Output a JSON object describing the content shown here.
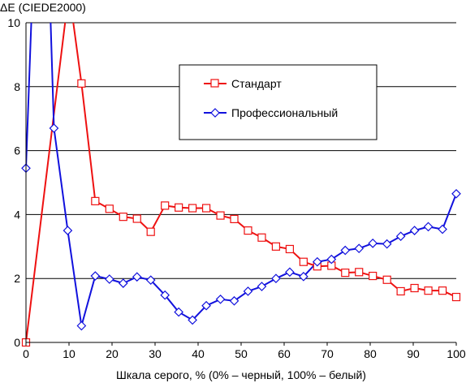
{
  "chart_data": {
    "type": "line",
    "title": "",
    "ylabel": "ΔE (CIEDE2000)",
    "xlabel": "Шкала серого, % (0% – черный, 100% – белый)",
    "xlim": [
      0,
      100
    ],
    "ylim": [
      0,
      10
    ],
    "x_ticks": [
      0,
      10,
      20,
      30,
      40,
      50,
      60,
      70,
      80,
      90,
      100
    ],
    "y_ticks": [
      0,
      2,
      4,
      6,
      8,
      10
    ],
    "grid": "horizontal",
    "legend_placement": "upper-center-right",
    "series": [
      {
        "name": "Стандарт",
        "color": "#ee1111",
        "marker": "square",
        "x": [
          0,
          10,
          12.9,
          16.1,
          19.4,
          22.6,
          25.8,
          29,
          32.3,
          35.5,
          38.7,
          41.9,
          45.2,
          48.4,
          51.6,
          54.8,
          58.1,
          61.3,
          64.5,
          67.7,
          71,
          74.2,
          77.4,
          80.6,
          83.9,
          87.1,
          90.3,
          93.5,
          96.8,
          100
        ],
        "y": [
          0,
          11,
          8.1,
          4.42,
          4.18,
          3.93,
          3.87,
          3.46,
          4.28,
          4.22,
          4.2,
          4.2,
          3.97,
          3.86,
          3.5,
          3.28,
          3.0,
          2.92,
          2.52,
          2.38,
          2.4,
          2.18,
          2.2,
          2.08,
          1.96,
          1.6,
          1.7,
          1.62,
          1.62,
          1.42
        ]
      },
      {
        "name": "Профессиональный",
        "color": "#1111dd",
        "marker": "diamond",
        "x": [
          0,
          1.5,
          5.5,
          6.5,
          9.7,
          12.9,
          16.1,
          19.4,
          22.6,
          25.8,
          29,
          32.3,
          35.5,
          38.7,
          41.9,
          45.2,
          48.4,
          51.6,
          54.8,
          58.1,
          61.3,
          64.5,
          67.7,
          71,
          74.2,
          77.4,
          80.6,
          83.9,
          87.1,
          90.3,
          93.5,
          96.8,
          100
        ],
        "y": [
          5.45,
          11,
          11,
          6.7,
          3.5,
          0.52,
          2.08,
          1.98,
          1.85,
          2.05,
          1.95,
          1.48,
          0.95,
          0.7,
          1.15,
          1.35,
          1.3,
          1.6,
          1.75,
          2.0,
          2.2,
          2.06,
          2.52,
          2.6,
          2.88,
          2.94,
          3.1,
          3.08,
          3.32,
          3.5,
          3.62,
          3.54,
          4.65
        ]
      }
    ]
  }
}
